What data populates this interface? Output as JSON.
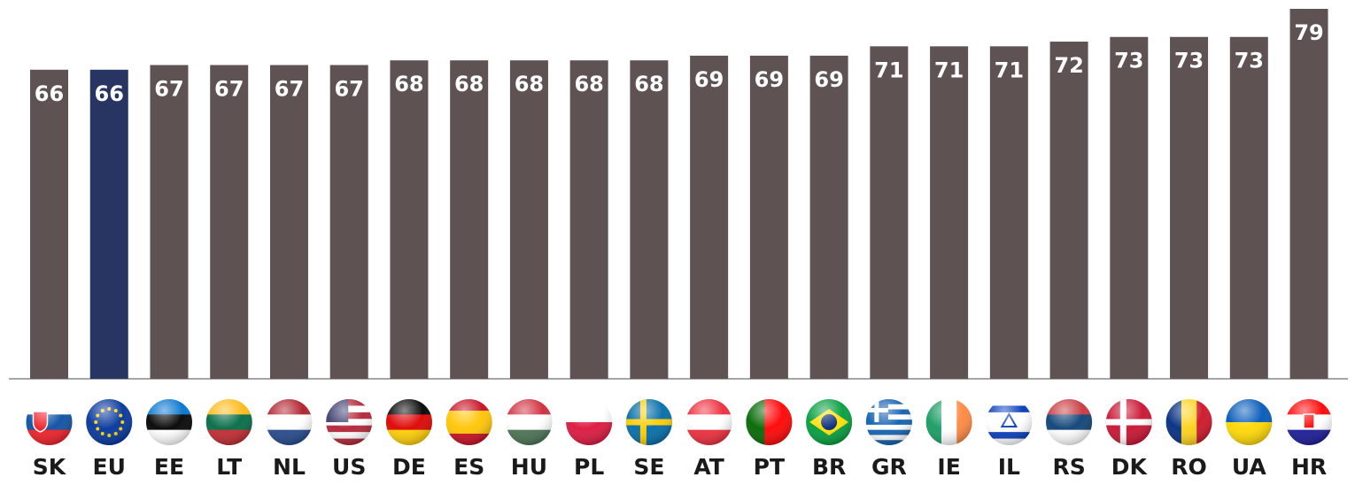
{
  "chart_data": {
    "type": "bar",
    "categories": [
      "SK",
      "EU",
      "EE",
      "LT",
      "NL",
      "US",
      "DE",
      "ES",
      "HU",
      "PL",
      "SE",
      "AT",
      "PT",
      "BR",
      "GR",
      "IE",
      "IL",
      "RS",
      "DK",
      "RO",
      "UA",
      "HR"
    ],
    "values": [
      66,
      66,
      67,
      67,
      67,
      67,
      68,
      68,
      68,
      68,
      68,
      69,
      69,
      69,
      71,
      71,
      71,
      72,
      73,
      73,
      73,
      79
    ],
    "colors": [
      "#5e5253",
      "#283462",
      "#5e5253",
      "#5e5253",
      "#5e5253",
      "#5e5253",
      "#5e5253",
      "#5e5253",
      "#5e5253",
      "#5e5253",
      "#5e5253",
      "#5e5253",
      "#5e5253",
      "#5e5253",
      "#5e5253",
      "#5e5253",
      "#5e5253",
      "#5e5253",
      "#5e5253",
      "#5e5253",
      "#5e5253",
      "#5e5253"
    ],
    "ylim": [
      0,
      79
    ]
  }
}
